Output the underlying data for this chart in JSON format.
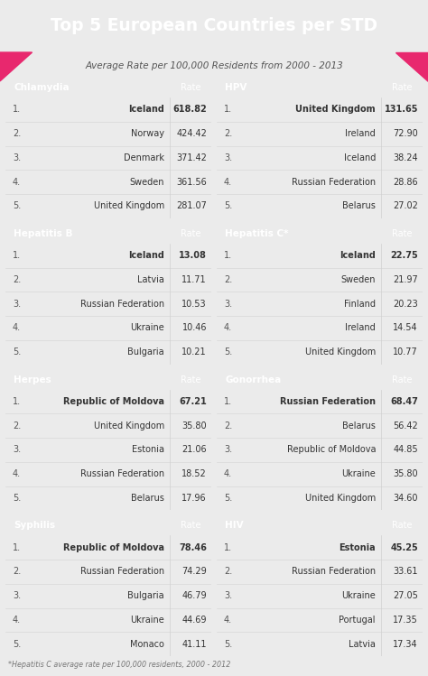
{
  "title": "Top 5 European Countries per STD",
  "subtitle": "Average Rate per 100,000 Residents from 2000 - 2013",
  "footnote": "*Hepatitis C average rate per 100,000 residents, 2000 - 2012",
  "title_bg": "#3d3d4e",
  "page_bg": "#ebebeb",
  "table_bg": "#f5f5f5",
  "sections": [
    {
      "name": "Chlamydia",
      "header_color": "#8b62bb",
      "rate_bg": "#9b7ac5",
      "col": 0,
      "entries": [
        {
          "rank": 1,
          "country": "Iceland",
          "rate": "618.82",
          "bold": true
        },
        {
          "rank": 2,
          "country": "Norway",
          "rate": "424.42",
          "bold": false
        },
        {
          "rank": 3,
          "country": "Denmark",
          "rate": "371.42",
          "bold": false
        },
        {
          "rank": 4,
          "country": "Sweden",
          "rate": "361.56",
          "bold": false
        },
        {
          "rank": 5,
          "country": "United Kingdom",
          "rate": "281.07",
          "bold": false
        }
      ]
    },
    {
      "name": "HPV",
      "header_color": "#3d3d4e",
      "rate_bg": "#555566",
      "col": 1,
      "entries": [
        {
          "rank": 1,
          "country": "United Kingdom",
          "rate": "131.65",
          "bold": true
        },
        {
          "rank": 2,
          "country": "Ireland",
          "rate": "72.90",
          "bold": false
        },
        {
          "rank": 3,
          "country": "Iceland",
          "rate": "38.24",
          "bold": false
        },
        {
          "rank": 4,
          "country": "Russian Federation",
          "rate": "28.86",
          "bold": false
        },
        {
          "rank": 5,
          "country": "Belarus",
          "rate": "27.02",
          "bold": false
        }
      ]
    },
    {
      "name": "Hepatitis B",
      "header_color": "#3aadad",
      "rate_bg": "#4dbfbf",
      "col": 0,
      "entries": [
        {
          "rank": 1,
          "country": "Iceland",
          "rate": "13.08",
          "bold": true
        },
        {
          "rank": 2,
          "country": "Latvia",
          "rate": "11.71",
          "bold": false
        },
        {
          "rank": 3,
          "country": "Russian Federation",
          "rate": "10.53",
          "bold": false
        },
        {
          "rank": 4,
          "country": "Ukraine",
          "rate": "10.46",
          "bold": false
        },
        {
          "rank": 5,
          "country": "Bulgaria",
          "rate": "10.21",
          "bold": false
        }
      ]
    },
    {
      "name": "Hepatitis C*",
      "header_color": "#c9936a",
      "rate_bg": "#d4a880",
      "col": 1,
      "entries": [
        {
          "rank": 1,
          "country": "Iceland",
          "rate": "22.75",
          "bold": true
        },
        {
          "rank": 2,
          "country": "Sweden",
          "rate": "21.97",
          "bold": false
        },
        {
          "rank": 3,
          "country": "Finland",
          "rate": "20.23",
          "bold": false
        },
        {
          "rank": 4,
          "country": "Ireland",
          "rate": "14.54",
          "bold": false
        },
        {
          "rank": 5,
          "country": "United Kingdom",
          "rate": "10.77",
          "bold": false
        }
      ]
    },
    {
      "name": "Herpes",
      "header_color": "#6b2660",
      "rate_bg": "#7d3f72",
      "col": 0,
      "entries": [
        {
          "rank": 1,
          "country": "Republic of Moldova",
          "rate": "67.21",
          "bold": true
        },
        {
          "rank": 2,
          "country": "United Kingdom",
          "rate": "35.80",
          "bold": false
        },
        {
          "rank": 3,
          "country": "Estonia",
          "rate": "21.06",
          "bold": false
        },
        {
          "rank": 4,
          "country": "Russian Federation",
          "rate": "18.52",
          "bold": false
        },
        {
          "rank": 5,
          "country": "Belarus",
          "rate": "17.96",
          "bold": false
        }
      ]
    },
    {
      "name": "Gonorrhea",
      "header_color": "#e8286e",
      "rate_bg": "#ee5088",
      "col": 1,
      "entries": [
        {
          "rank": 1,
          "country": "Russian Federation",
          "rate": "68.47",
          "bold": true
        },
        {
          "rank": 2,
          "country": "Belarus",
          "rate": "56.42",
          "bold": false
        },
        {
          "rank": 3,
          "country": "Republic of Moldova",
          "rate": "44.85",
          "bold": false
        },
        {
          "rank": 4,
          "country": "Ukraine",
          "rate": "35.80",
          "bold": false
        },
        {
          "rank": 5,
          "country": "United Kingdom",
          "rate": "34.60",
          "bold": false
        }
      ]
    },
    {
      "name": "Syphilis",
      "header_color": "#cc4d7c",
      "rate_bg": "#d96d90",
      "col": 0,
      "entries": [
        {
          "rank": 1,
          "country": "Republic of Moldova",
          "rate": "78.46",
          "bold": true
        },
        {
          "rank": 2,
          "country": "Russian Federation",
          "rate": "74.29",
          "bold": false
        },
        {
          "rank": 3,
          "country": "Bulgaria",
          "rate": "46.79",
          "bold": false
        },
        {
          "rank": 4,
          "country": "Ukraine",
          "rate": "44.69",
          "bold": false
        },
        {
          "rank": 5,
          "country": "Monaco",
          "rate": "41.11",
          "bold": false
        }
      ]
    },
    {
      "name": "HIV",
      "header_color": "#9e8880",
      "rate_bg": "#b09a92",
      "col": 1,
      "entries": [
        {
          "rank": 1,
          "country": "Estonia",
          "rate": "45.25",
          "bold": true
        },
        {
          "rank": 2,
          "country": "Russian Federation",
          "rate": "33.61",
          "bold": false
        },
        {
          "rank": 3,
          "country": "Ukraine",
          "rate": "27.05",
          "bold": false
        },
        {
          "rank": 4,
          "country": "Portugal",
          "rate": "17.35",
          "bold": false
        },
        {
          "rank": 5,
          "country": "Latvia",
          "rate": "17.34",
          "bold": false
        }
      ]
    }
  ]
}
